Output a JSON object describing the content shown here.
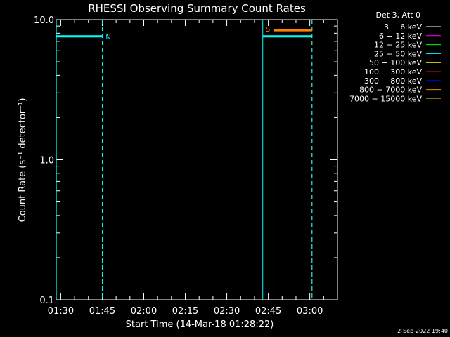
{
  "chart_data": {
    "type": "line",
    "title": "RHESSI Observing Summary Count Rates",
    "xlabel": "Start Time (14-Mar-18 01:28:22)",
    "ylabel": "Count Rate (s⁻¹ detector⁻¹)",
    "yscale": "log",
    "ylim": [
      0.1,
      10.0
    ],
    "xlim_minutes": [
      88.37,
      190.0
    ],
    "x_ticks": [
      {
        "label": "01:30",
        "minutes": 90
      },
      {
        "label": "01:45",
        "minutes": 105
      },
      {
        "label": "02:00",
        "minutes": 120
      },
      {
        "label": "02:15",
        "minutes": 135
      },
      {
        "label": "02:30",
        "minutes": 150
      },
      {
        "label": "02:45",
        "minutes": 165
      },
      {
        "label": "03:00",
        "minutes": 180
      }
    ],
    "y_ticks": [
      {
        "label": "0.1",
        "value": 0.1
      },
      {
        "label": "1.0",
        "value": 1.0
      },
      {
        "label": "10.0",
        "value": 10.0
      }
    ],
    "legend_header": "Det 3, Att 0",
    "legend": [
      {
        "name": "3 − 6 keV",
        "color": "#ffffff"
      },
      {
        "name": "6 − 12 keV",
        "color": "#ff00ff"
      },
      {
        "name": "12 − 25 keV",
        "color": "#00ff00"
      },
      {
        "name": "25 − 50 keV",
        "color": "#00ffff"
      },
      {
        "name": "50 − 100 keV",
        "color": "#ffff00"
      },
      {
        "name": "100 − 300 keV",
        "color": "#ff0000"
      },
      {
        "name": "300 − 800 keV",
        "color": "#0000ff"
      },
      {
        "name": "800 − 7000 keV",
        "color": "#ff8000"
      },
      {
        "name": "7000 − 15000 keV",
        "color": "#9a7a00"
      }
    ],
    "legend_placement": "right",
    "series": [
      {
        "name": "25 − 50 keV",
        "color": "#00ffff",
        "points": [
          [
            88.4,
            7.6
          ],
          [
            105.0,
            7.6
          ]
        ]
      },
      {
        "name": "25 − 50 keV",
        "color": "#00ffff",
        "points": [
          [
            163.0,
            7.6
          ],
          [
            180.8,
            7.6
          ]
        ]
      },
      {
        "name": "800 − 7000 keV",
        "color": "#ff8000",
        "points": [
          [
            167.0,
            8.4
          ],
          [
            180.8,
            8.4
          ]
        ]
      }
    ],
    "vertical_lines": [
      {
        "minutes": 88.4,
        "color": "#00ffff",
        "style": "solid"
      },
      {
        "minutes": 105.0,
        "color": "#00ffff",
        "style": "dashed"
      },
      {
        "minutes": 163.0,
        "color": "#00ffff",
        "style": "solid"
      },
      {
        "minutes": 167.0,
        "color": "#c0741a",
        "style": "solid"
      },
      {
        "minutes": 180.8,
        "color": "#ff8000",
        "style": "dashed"
      },
      {
        "minutes": 180.8,
        "color": "#00ffff",
        "style": "dashed"
      }
    ],
    "annotations": [
      {
        "text": "N",
        "minutes": 106.0,
        "value": 7.6,
        "color": "#00ffff"
      },
      {
        "text": "S",
        "minutes": 163.8,
        "value": 8.6,
        "color": "#ff8000"
      }
    ],
    "grid": false
  },
  "timestamp": "2-Sep-2022 19:40"
}
